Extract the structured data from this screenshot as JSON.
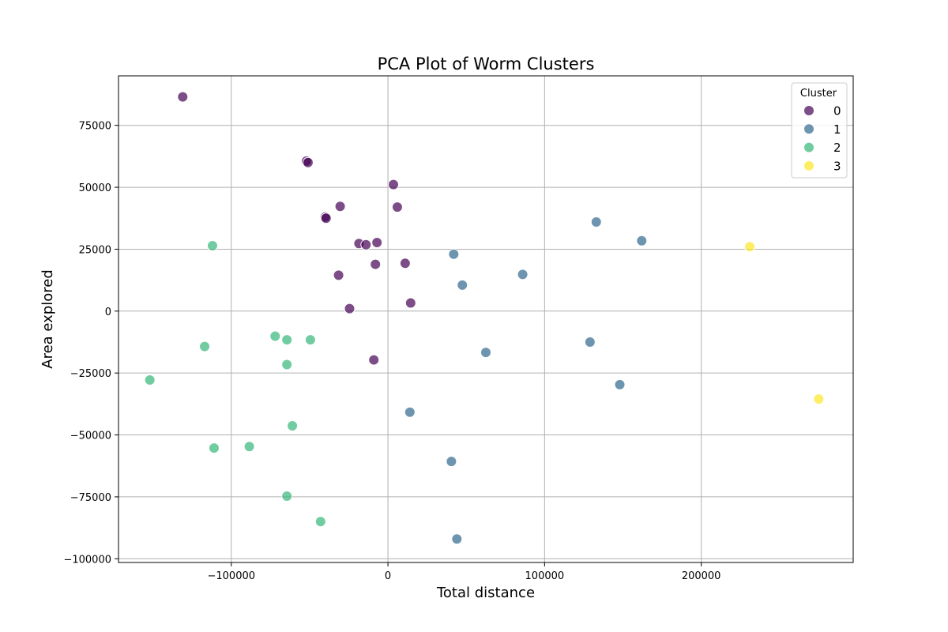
{
  "chart_data": {
    "type": "scatter",
    "title": "PCA Plot of Worm Clusters",
    "xlabel": "Total distance",
    "ylabel": "Area explored",
    "xlim": [
      -172000,
      297000
    ],
    "ylim": [
      -101500,
      95000
    ],
    "x_ticks": [
      -100000,
      0,
      100000,
      200000
    ],
    "y_ticks": [
      -100000,
      -75000,
      -50000,
      -25000,
      0,
      25000,
      50000,
      75000
    ],
    "x_tick_labels": [
      "−100000",
      "0",
      "100000",
      "200000"
    ],
    "y_tick_labels": [
      "−100000",
      "−75000",
      "−50000",
      "−25000",
      "0",
      "25000",
      "50000",
      "75000"
    ],
    "grid": true,
    "legend": {
      "title": "Cluster",
      "placement": "top-right",
      "entries": [
        "0",
        "1",
        "2",
        "3"
      ]
    },
    "series": [
      {
        "name": "0",
        "color": "#440154",
        "points": [
          [
            -131000,
            86500
          ],
          [
            -52000,
            60600
          ],
          [
            -51000,
            60000
          ],
          [
            -40000,
            38000
          ],
          [
            -39500,
            37500
          ],
          [
            -30500,
            42300
          ],
          [
            3500,
            51100
          ],
          [
            6000,
            42000
          ],
          [
            -18500,
            27300
          ],
          [
            -14000,
            26800
          ],
          [
            -7000,
            27700
          ],
          [
            -8000,
            18900
          ],
          [
            11000,
            19300
          ],
          [
            -31500,
            14500
          ],
          [
            -24500,
            1000
          ],
          [
            14500,
            3300
          ],
          [
            -9000,
            -19700
          ]
        ]
      },
      {
        "name": "1",
        "color": "#31688e",
        "points": [
          [
            133000,
            36000
          ],
          [
            162000,
            28400
          ],
          [
            42000,
            23000
          ],
          [
            86000,
            14800
          ],
          [
            47500,
            10500
          ],
          [
            129000,
            -12500
          ],
          [
            62500,
            -16700
          ],
          [
            148000,
            -29700
          ],
          [
            14000,
            -40800
          ],
          [
            40500,
            -60700
          ],
          [
            44000,
            -92000
          ]
        ]
      },
      {
        "name": "2",
        "color": "#35b779",
        "points": [
          [
            -112000,
            26400
          ],
          [
            -72000,
            -10100
          ],
          [
            -64500,
            -11600
          ],
          [
            -49500,
            -11600
          ],
          [
            -117000,
            -14300
          ],
          [
            -64500,
            -21600
          ],
          [
            -152000,
            -27800
          ],
          [
            -61000,
            -46300
          ],
          [
            -111000,
            -55300
          ],
          [
            -88500,
            -54700
          ],
          [
            -64500,
            -74700
          ],
          [
            -43000,
            -85000
          ]
        ]
      },
      {
        "name": "3",
        "color": "#fde725",
        "points": [
          [
            231000,
            26000
          ],
          [
            275000,
            -35500
          ]
        ]
      }
    ]
  }
}
